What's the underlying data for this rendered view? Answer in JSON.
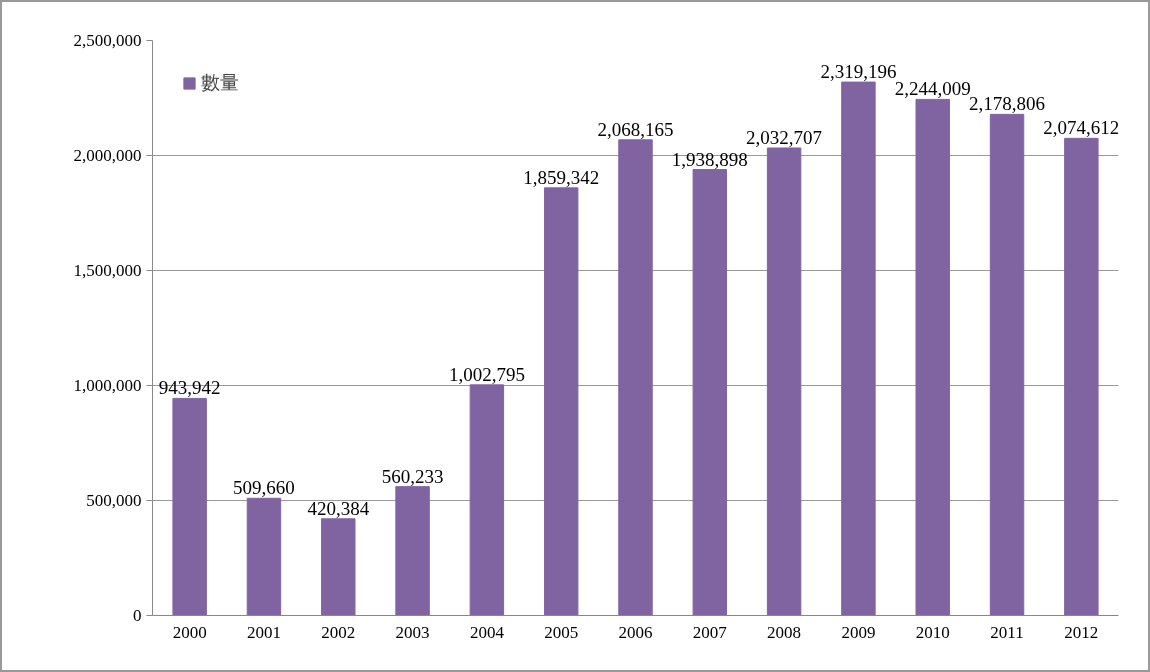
{
  "chart_data": {
    "type": "bar",
    "categories": [
      "2000",
      "2001",
      "2002",
      "2003",
      "2004",
      "2005",
      "2006",
      "2007",
      "2008",
      "2009",
      "2010",
      "2011",
      "2012"
    ],
    "series": [
      {
        "name": "數量",
        "color": "#8064a2",
        "values": [
          943942,
          509660,
          420384,
          560233,
          1002795,
          1859342,
          2068165,
          1938898,
          2032707,
          2319196,
          2244009,
          2178806,
          2074612
        ],
        "value_labels": [
          "943,942",
          "509,660",
          "420,384",
          "560,233",
          "1,002,795",
          "1,859,342",
          "2,068,165",
          "1,938,898",
          "2,032,707",
          "2,319,196",
          "2,244,009",
          "2,178,806",
          "2,074,612"
        ]
      }
    ],
    "ylim": [
      0,
      2500000
    ],
    "yticks": [
      {
        "value": 0,
        "label": "0"
      },
      {
        "value": 500000,
        "label": "500,000"
      },
      {
        "value": 1000000,
        "label": "1,000,000"
      },
      {
        "value": 1500000,
        "label": "1,500,000"
      },
      {
        "value": 2000000,
        "label": "2,000,000"
      },
      {
        "value": 2500000,
        "label": "2,500,000"
      }
    ],
    "grid": "y",
    "legend": "top left"
  }
}
